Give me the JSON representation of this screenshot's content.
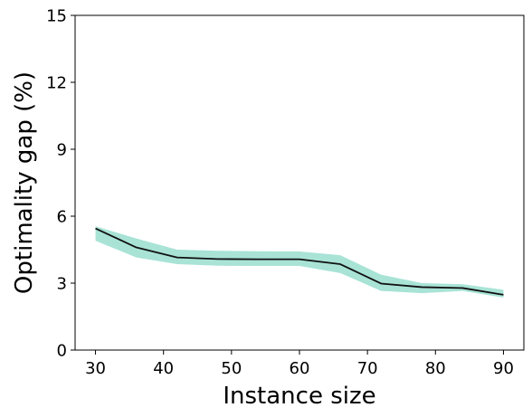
{
  "chart_data": {
    "type": "line",
    "title": "",
    "xlabel": "Instance size",
    "ylabel": "Optimality gap (%)",
    "xlim": [
      27,
      93
    ],
    "ylim": [
      0,
      15
    ],
    "xticks": [
      30,
      40,
      50,
      60,
      70,
      80,
      90
    ],
    "yticks": [
      0,
      3,
      6,
      9,
      12,
      15
    ],
    "grid": false,
    "legend": "none",
    "series": [
      {
        "x": [
          30,
          36,
          42,
          48,
          54,
          60,
          66,
          72,
          78,
          84,
          90
        ],
        "mean": [
          5.45,
          4.6,
          4.15,
          4.08,
          4.07,
          4.07,
          3.85,
          2.98,
          2.82,
          2.78,
          2.48
        ],
        "lower": [
          4.9,
          4.15,
          3.85,
          3.78,
          3.77,
          3.77,
          3.45,
          2.65,
          2.55,
          2.65,
          2.35
        ],
        "upper": [
          5.55,
          5.0,
          4.5,
          4.45,
          4.43,
          4.42,
          4.25,
          3.38,
          3.0,
          2.95,
          2.7
        ],
        "line_color": "#111111",
        "band_color": "#a8e3d6"
      }
    ]
  }
}
